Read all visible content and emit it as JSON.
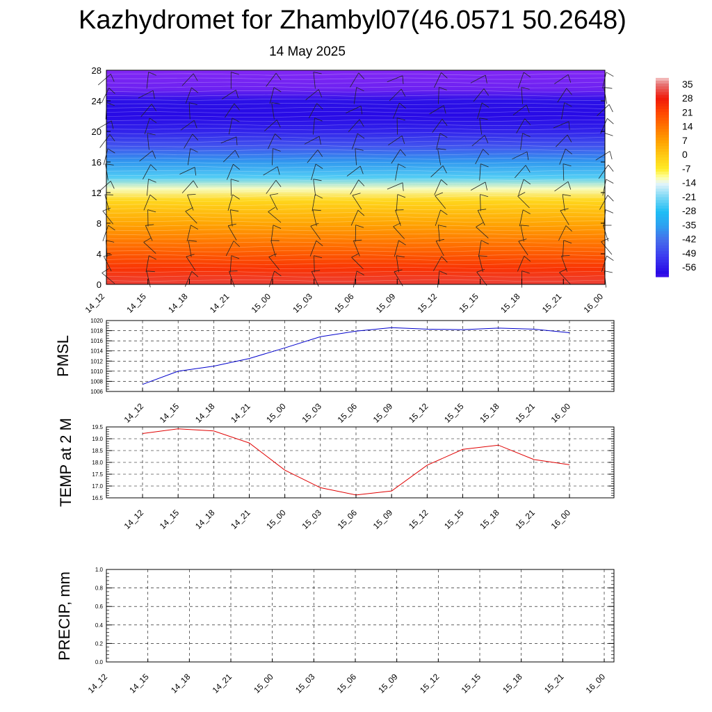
{
  "title": "Kazhydromet for Zhambyl07(46.0571 50.2648)",
  "subtitle": "14 May 2025",
  "time_labels": [
    "14_12",
    "14_15",
    "14_18",
    "14_21",
    "15_00",
    "15_03",
    "15_06",
    "15_09",
    "15_12",
    "15_15",
    "15_18",
    "15_21",
    "16_00"
  ],
  "colors": {
    "pmsl_line": "#0000cc",
    "temp_line": "#e00000",
    "precip_line": "#006400"
  },
  "chart_data": [
    {
      "type": "heatmap",
      "name": "temperature-wind-profile",
      "x": [
        "14_12",
        "14_15",
        "14_18",
        "14_21",
        "15_00",
        "15_03",
        "15_06",
        "15_09",
        "15_12",
        "15_15",
        "15_18",
        "15_21",
        "16_00"
      ],
      "y_ticks": [
        0,
        4,
        8,
        12,
        16,
        20,
        24,
        28
      ],
      "ylim": [
        0,
        28
      ],
      "colorbar_labels": [
        "35",
        "28",
        "21",
        "14",
        "7",
        "0",
        "-7",
        "-14",
        "-21",
        "-28",
        "-35",
        "-42",
        "-49",
        "-56"
      ],
      "value_range": [
        -60,
        38
      ],
      "profile": [
        {
          "level": 0,
          "value": 31
        },
        {
          "level": 2,
          "value": 24
        },
        {
          "level": 5,
          "value": 15
        },
        {
          "level": 8,
          "value": 6
        },
        {
          "level": 11,
          "value": -3
        },
        {
          "level": 12.5,
          "value": -12
        },
        {
          "level": 14,
          "value": -24
        },
        {
          "level": 16,
          "value": -36
        },
        {
          "level": 18,
          "value": -46
        },
        {
          "level": 20,
          "value": -54
        },
        {
          "level": 22,
          "value": -58
        },
        {
          "level": 24,
          "value": -57
        },
        {
          "level": 25.5,
          "value": -64
        },
        {
          "level": 28,
          "value": -66
        }
      ],
      "wind_barb_levels": [
        1,
        3,
        5,
        7,
        9,
        11,
        13,
        15,
        17,
        19,
        21,
        23,
        25,
        27
      ]
    },
    {
      "type": "line",
      "name": "PMSL",
      "ylabel": "PMSL",
      "x": [
        "14_12",
        "14_15",
        "14_18",
        "14_21",
        "15_00",
        "15_03",
        "15_06",
        "15_09",
        "15_12",
        "15_15",
        "15_18",
        "15_21",
        "16_00"
      ],
      "values": [
        1007.4,
        1010.0,
        1011.0,
        1012.5,
        1014.6,
        1016.8,
        1017.9,
        1018.6,
        1018.3,
        1018.2,
        1018.5,
        1018.3,
        1017.6
      ],
      "ylim": [
        1006,
        1020
      ],
      "y_ticks": [
        "1006",
        "1008",
        "1010",
        "1012",
        "1014",
        "1016",
        "1018",
        "1020"
      ],
      "grid": true
    },
    {
      "type": "line",
      "name": "TEMP at 2 M",
      "ylabel": "TEMP at 2 M",
      "x": [
        "14_12",
        "14_15",
        "14_18",
        "14_21",
        "15_00",
        "15_03",
        "15_06",
        "15_09",
        "15_12",
        "15_15",
        "15_18",
        "15_21",
        "16_00"
      ],
      "values": [
        19.22,
        19.42,
        19.33,
        18.82,
        17.67,
        16.93,
        16.62,
        16.79,
        17.88,
        18.55,
        18.73,
        18.12,
        17.9
      ],
      "ylim": [
        16.5,
        19.5
      ],
      "y_ticks": [
        "16.5",
        "17.0",
        "17.5",
        "18.0",
        "18.5",
        "19.0",
        "19.5"
      ],
      "grid": true
    },
    {
      "type": "line",
      "name": "PRECIP, mm",
      "ylabel": "PRECIP, mm",
      "x": [
        "14_12",
        "14_15",
        "14_18",
        "14_21",
        "15_00",
        "15_03",
        "15_06",
        "15_09",
        "15_12",
        "15_15",
        "15_18",
        "15_21",
        "16_00"
      ],
      "values": [
        0,
        0,
        0,
        0,
        0,
        0,
        0,
        0,
        0,
        0,
        0,
        0,
        0
      ],
      "ylim": [
        0,
        1
      ],
      "y_ticks": [
        "0.0",
        "0.2",
        "0.4",
        "0.6",
        "0.8",
        "1.0"
      ],
      "grid": true
    }
  ]
}
